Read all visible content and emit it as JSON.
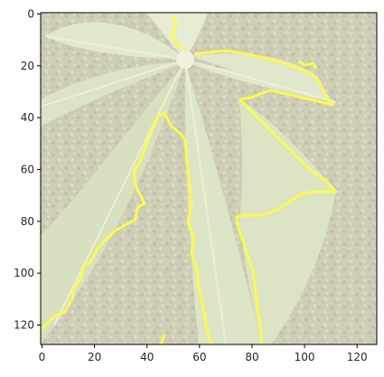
{
  "figure": {
    "x_ticks": [
      "0",
      "20",
      "40",
      "60",
      "80",
      "100",
      "120"
    ],
    "y_ticks": [
      "0",
      "20",
      "40",
      "60",
      "80",
      "100",
      "120"
    ],
    "x_range": [
      -0.5,
      127.5
    ],
    "y_range": [
      127.5,
      -0.5
    ],
    "image_description_colors": {
      "background": "#ffffff",
      "frame": "#000000",
      "leaf": "#cfe0b4",
      "leaf_light": "#e4edcf",
      "shadow": "#8a8f6a",
      "vein": "#f3f1dd",
      "contour": "#ffff00"
    }
  }
}
